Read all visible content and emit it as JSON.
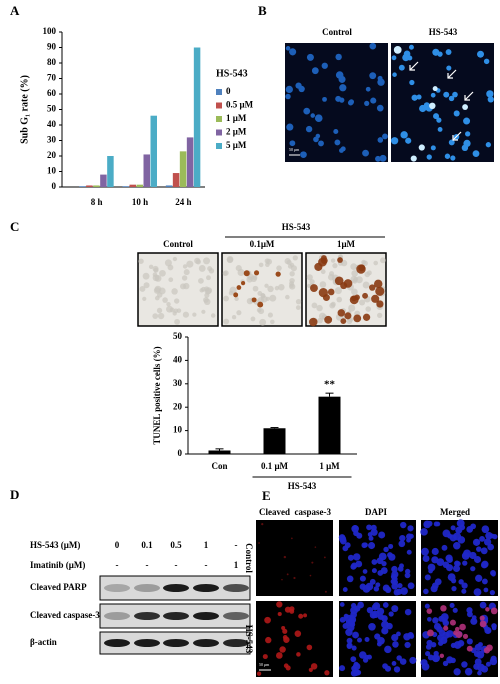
{
  "panels": {
    "a": "A",
    "b": "B",
    "c": "C",
    "d": "D",
    "e": "E"
  },
  "chart_data": [
    {
      "type": "bar",
      "ylabel": "Sub G₁ rate (%)",
      "categories": [
        "8 h",
        "10 h",
        "24 h"
      ],
      "legend_title": "HS-543",
      "series": [
        {
          "name": "0",
          "color": "#4f81bd",
          "values": [
            0.5,
            0.5,
            1
          ]
        },
        {
          "name": "0.5 μM",
          "color": "#c0504d",
          "values": [
            1,
            1.5,
            9
          ]
        },
        {
          "name": "1 μM",
          "color": "#9bbb59",
          "values": [
            1,
            1.5,
            23
          ]
        },
        {
          "name": "2 μM",
          "color": "#8064a2",
          "values": [
            8,
            21,
            32
          ]
        },
        {
          "name": "5 μM",
          "color": "#4bacc6",
          "values": [
            20,
            46,
            90
          ]
        }
      ],
      "ylim": [
        0,
        100
      ],
      "yticks": [
        0,
        10,
        20,
        30,
        40,
        50,
        60,
        70,
        80,
        90,
        100
      ]
    },
    {
      "type": "bar",
      "ylabel": "TUNEL positive cells (%)",
      "categories": [
        "Con",
        "0.1 μM",
        "1 μM"
      ],
      "values": [
        1.5,
        11,
        24.5
      ],
      "errors": [
        0.7,
        0.3,
        1.5
      ],
      "color": "#000000",
      "annotation": "**",
      "group_label": "HS-543",
      "ylim": [
        0,
        50
      ],
      "yticks": [
        0,
        10,
        20,
        30,
        40,
        50
      ]
    }
  ],
  "panel_b": {
    "labels": [
      "Control",
      "HS-543"
    ],
    "scale": "50 μm"
  },
  "panel_c_images": {
    "group": "HS-543",
    "labels": [
      "Control",
      "0.1μM",
      "1μM"
    ]
  },
  "panel_d": {
    "rows": [
      {
        "label": "HS-543 (μM)",
        "values": [
          "0",
          "0.1",
          "0.5",
          "1",
          "-"
        ]
      },
      {
        "label": "Imatinib (μM)",
        "values": [
          "-",
          "-",
          "-",
          "-",
          "1"
        ]
      }
    ],
    "bands": [
      "Cleaved PARP",
      "Cleaved caspase-3",
      "β-actin"
    ]
  },
  "panel_e": {
    "columns": [
      "Cleaved  caspase-3",
      "DAPI",
      "Merged"
    ],
    "rows": [
      "Control",
      "HS-543"
    ],
    "scale": "50 μm"
  }
}
